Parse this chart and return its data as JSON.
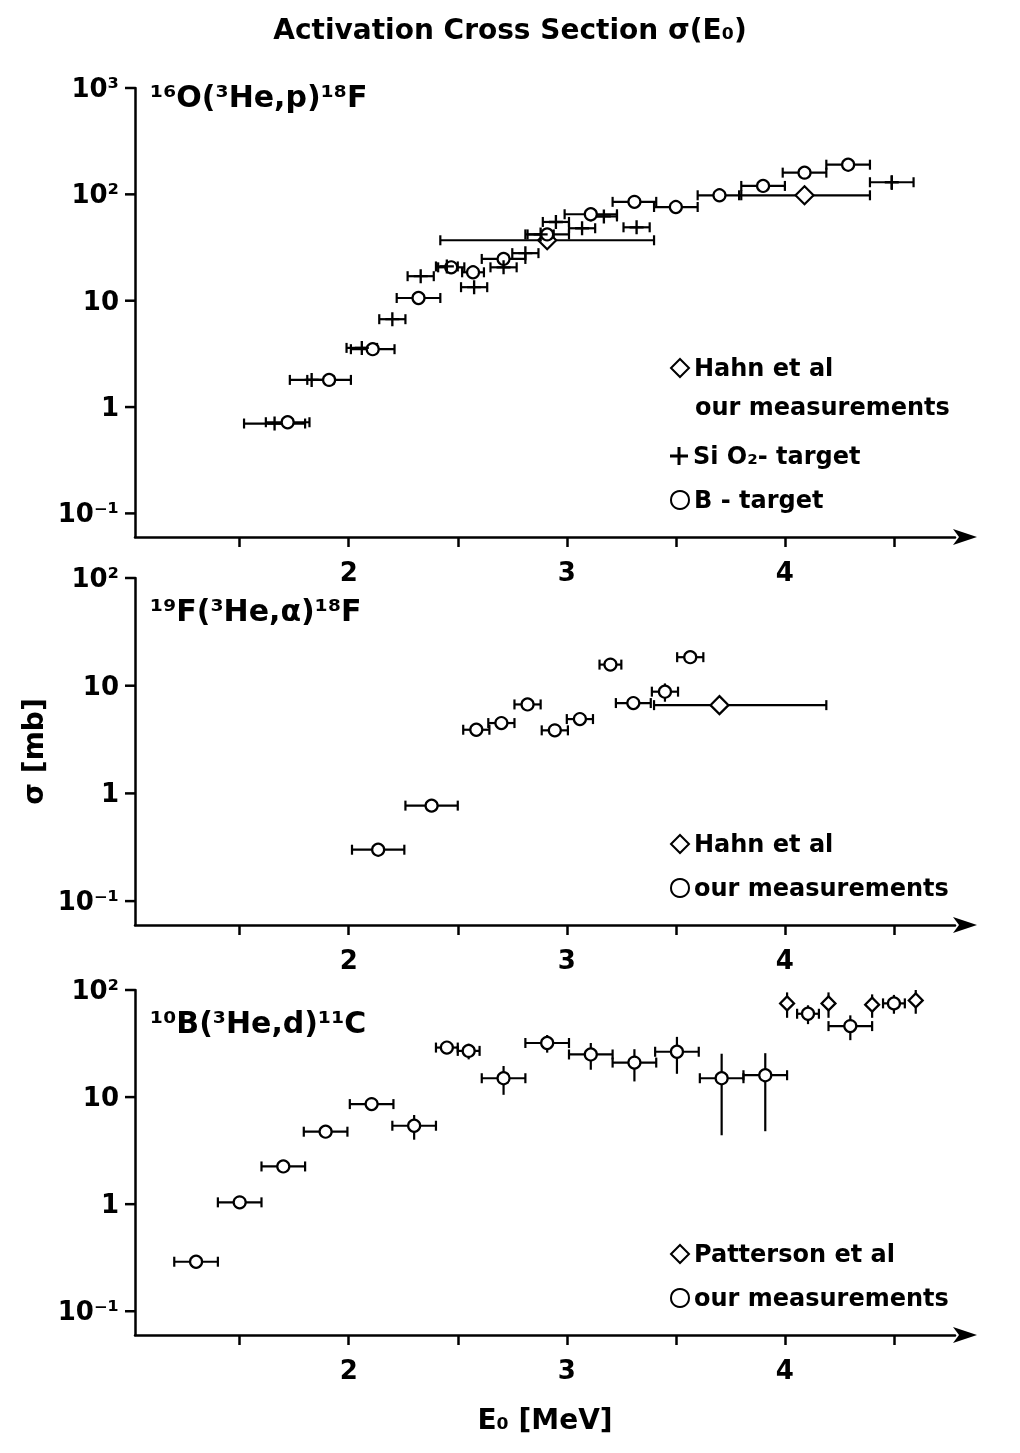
{
  "chart_data": [
    {
      "type": "scatter",
      "title": "Activation Cross Section σ(E₀)",
      "subtitle": "¹⁶O(³He,p)¹⁸F",
      "log": "y",
      "xlim": [
        1.02,
        4.78
      ],
      "ylim": [
        0.06,
        1000
      ],
      "xticks": [
        {
          "value": 1.5,
          "label": null
        },
        2,
        {
          "value": 2.5,
          "label": null
        },
        3,
        {
          "value": 3.5,
          "label": null
        },
        4,
        {
          "value": 4.5,
          "label": null
        }
      ],
      "yticks": [
        {
          "value": 0.1,
          "label": "10⁻¹"
        },
        {
          "value": 1,
          "label": "1"
        },
        {
          "value": 10,
          "label": "10"
        },
        {
          "value": 100,
          "label": "10²"
        },
        {
          "value": 1000,
          "label": "10³"
        }
      ],
      "grid": false,
      "legend": "bottom right",
      "annotations": [
        "our measurements"
      ],
      "series": [
        {
          "name": "Hahn et al",
          "color": "#000000",
          "marker": "diamond",
          "x": [
            2.91,
            4.09
          ],
          "values": [
            37,
            98
          ],
          "xerrors": [
            0.49,
            0.3
          ]
        },
        {
          "name": "Si O₂- target",
          "color": "#000000",
          "marker": "cross",
          "x": [
            1.66,
            1.83,
            2.06,
            2.2,
            2.33,
            2.45,
            2.575,
            2.71,
            2.81,
            2.88,
            2.95,
            3.07,
            3.17,
            3.32,
            4.49
          ],
          "values": [
            0.7,
            1.8,
            3.6,
            6.7,
            17,
            21,
            13.4,
            20.6,
            28,
            42,
            55,
            48,
            62,
            49,
            130
          ],
          "xerrors": [
            0.14,
            0.1,
            0.07,
            0.06,
            0.06,
            0.05,
            0.06,
            0.06,
            0.06,
            0.06,
            0.06,
            0.06,
            0.06,
            0.06,
            0.1
          ],
          "errors": [
            null,
            null,
            null,
            null,
            null,
            null,
            null,
            null,
            null,
            null,
            null,
            null,
            null,
            null,
            20
          ]
        },
        {
          "name": "B - target",
          "color": "#000000",
          "marker": "circle",
          "x": [
            1.72,
            1.91,
            2.11,
            2.32,
            2.47,
            2.57,
            2.71,
            2.91,
            3.11,
            3.31,
            3.5,
            3.7,
            3.9,
            4.09,
            4.29
          ],
          "values": [
            0.72,
            1.8,
            3.5,
            10.6,
            20.6,
            18.5,
            24.7,
            42,
            65,
            85,
            76,
            98,
            120,
            160,
            190
          ],
          "xerrors": [
            0.1,
            0.1,
            0.1,
            0.1,
            0.06,
            0.05,
            0.1,
            0.1,
            0.12,
            0.1,
            0.1,
            0.1,
            0.1,
            0.1,
            0.1
          ]
        }
      ]
    },
    {
      "type": "scatter",
      "subtitle": "¹⁹F(³He,α)¹⁸F",
      "ylabel": "σ [mb]",
      "log": "y",
      "xlim": [
        1.02,
        4.78
      ],
      "ylim": [
        0.06,
        100
      ],
      "xticks": [
        {
          "value": 1.5,
          "label": null
        },
        2,
        {
          "value": 2.5,
          "label": null
        },
        3,
        {
          "value": 3.5,
          "label": null
        },
        4,
        {
          "value": 4.5,
          "label": null
        }
      ],
      "yticks": [
        {
          "value": 0.1,
          "label": "10⁻¹"
        },
        {
          "value": 1,
          "label": "1"
        },
        {
          "value": 10,
          "label": "10"
        },
        {
          "value": 100,
          "label": "10²"
        }
      ],
      "grid": false,
      "legend": "bottom right",
      "series": [
        {
          "name": "Hahn et al",
          "color": "#000000",
          "marker": "diamond",
          "x": [
            3.7
          ],
          "values": [
            6.6
          ],
          "xerrors": [
            [
              3.4,
              4.19
            ]
          ]
        },
        {
          "name": "our measurements",
          "color": "#000000",
          "marker": "circle",
          "x": [
            2.135,
            2.38,
            2.585,
            2.7,
            2.82,
            2.945,
            3.06,
            3.2,
            3.305,
            3.45,
            3.566
          ],
          "values": [
            0.3,
            0.77,
            3.9,
            4.5,
            6.7,
            3.85,
            4.9,
            15.7,
            6.9,
            8.8,
            18.4
          ],
          "xerrors": [
            0.12,
            0.12,
            0.06,
            0.06,
            0.06,
            0.06,
            0.06,
            0.05,
            0.08,
            0.06,
            0.06
          ],
          "errors": [
            null,
            null,
            null,
            null,
            null,
            null,
            null,
            null,
            null,
            1.7,
            null
          ]
        }
      ]
    },
    {
      "type": "scatter",
      "subtitle": "¹⁰B(³He,d)¹¹C",
      "xlabel": "E₀ [MeV]",
      "log": "y",
      "xlim": [
        1.02,
        4.78
      ],
      "ylim": [
        0.06,
        100
      ],
      "xticks": [
        {
          "value": 1.5,
          "label": null
        },
        2,
        {
          "value": 2.5,
          "label": null
        },
        3,
        {
          "value": 3.5,
          "label": null
        },
        4,
        {
          "value": 4.5,
          "label": null
        }
      ],
      "yticks": [
        {
          "value": 0.1,
          "label": "10⁻¹"
        },
        {
          "value": 1,
          "label": "1"
        },
        {
          "value": 10,
          "label": "10"
        },
        {
          "value": 100,
          "label": "10²"
        }
      ],
      "grid": false,
      "legend": "bottom right",
      "series": [
        {
          "name": "Patterson et al",
          "color": "#000000",
          "marker": "diamond",
          "x": [
            4.01,
            4.2,
            4.4,
            4.6
          ],
          "values": [
            75,
            75,
            73,
            80
          ],
          "errors": [
            20,
            20,
            18,
            20
          ]
        },
        {
          "name": "our measurements",
          "color": "#000000",
          "marker": "circle",
          "x": [
            1.3,
            1.5,
            1.7,
            1.894,
            2.105,
            2.3,
            2.45,
            2.55,
            2.71,
            2.91,
            3.11,
            3.31,
            3.505,
            3.71,
            3.91,
            4.106,
            4.3,
            4.5
          ],
          "values": [
            0.29,
            1.04,
            2.25,
            4.75,
            8.6,
            5.4,
            29,
            27,
            15,
            32,
            25,
            21,
            26.5,
            15,
            16,
            60,
            46,
            75
          ],
          "xerrors": [
            0.1,
            0.1,
            0.1,
            0.1,
            0.1,
            0.1,
            0.05,
            0.05,
            0.1,
            0.1,
            0.1,
            0.1,
            0.1,
            0.1,
            0.1,
            0.05,
            0.1,
            0.05
          ],
          "errors": [
            null,
            null,
            null,
            null,
            null,
            1.4,
            null,
            4.5,
            4.5,
            6,
            7,
            7,
            10,
            [
              4.4,
              25.4
            ],
            [
              4.8,
              25.7
            ],
            12,
            12,
            15
          ]
        }
      ]
    }
  ]
}
